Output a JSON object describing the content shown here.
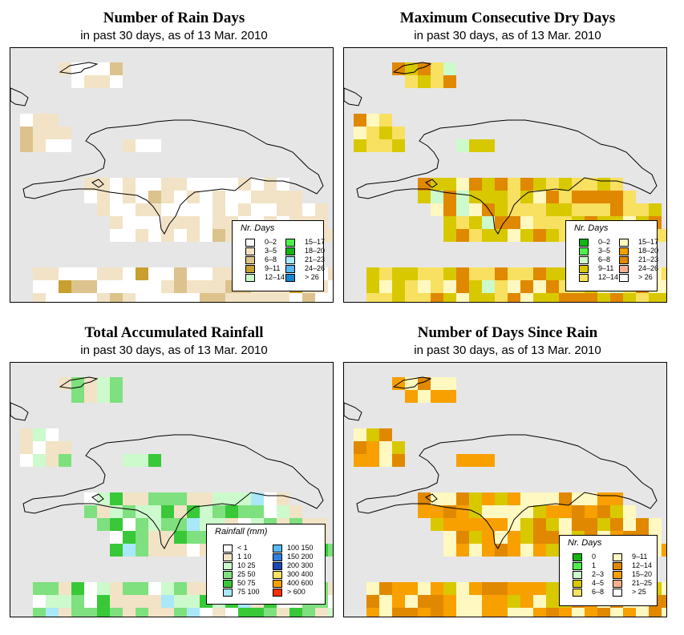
{
  "colors": {
    "ocean": "#e6e6e6",
    "coast": "#000000"
  },
  "panels": [
    {
      "id": "rain-days",
      "title": "Number of Rain Days",
      "subtitle": "in past 30 days, as of  13 Mar. 2010",
      "legend": {
        "title": "Nr. Days",
        "items": [
          {
            "label": "0–2",
            "color": "#ffffff"
          },
          {
            "label": "3–5",
            "color": "#f2e3c6"
          },
          {
            "label": "6–8",
            "color": "#dcc28c"
          },
          {
            "label": "9–11",
            "color": "#c8a030"
          },
          {
            "label": "12–14",
            "color": "#ccfacc"
          },
          {
            "label": "15–17",
            "color": "#4ef04e"
          },
          {
            "label": "18–20",
            "color": "#14b414"
          },
          {
            "label": "21–23",
            "color": "#a8e8f8"
          },
          {
            "label": "24–26",
            "color": "#58b8f0"
          },
          {
            "label": "> 26",
            "color": "#1088d0"
          }
        ]
      },
      "palette": [
        "#ffffff",
        "#f2e3c6",
        "#dcc28c",
        "#c8a030",
        "#ccfacc"
      ]
    },
    {
      "id": "dry-days",
      "title": "Maximum Consecutive Dry Days",
      "subtitle": "in past 30 days, as of  13 Mar. 2010",
      "legend": {
        "title": "Nr. Days",
        "items": [
          {
            "label": "0–2",
            "color": "#14b414"
          },
          {
            "label": "3–5",
            "color": "#4ef04e"
          },
          {
            "label": "6–8",
            "color": "#ccfacc"
          },
          {
            "label": "9–11",
            "color": "#d8c800"
          },
          {
            "label": "12–14",
            "color": "#f8e060"
          },
          {
            "label": "15–17",
            "color": "#fff8c0"
          },
          {
            "label": "18–20",
            "color": "#f0a000"
          },
          {
            "label": "21–23",
            "color": "#e08800"
          },
          {
            "label": "24–26",
            "color": "#f8b090"
          },
          {
            "label": "> 26",
            "color": "#ffffff"
          }
        ]
      },
      "palette": [
        "#d8c800",
        "#f8e060",
        "#fff8c0",
        "#e08800",
        "#ccfacc",
        "#4ef04e",
        "#f8b090"
      ]
    },
    {
      "id": "total-rainfall",
      "title": "Total Accumulated Rainfall",
      "subtitle": "in past 30 days, as of  13 Mar. 2010",
      "legend": {
        "title": "Rainfall (mm)",
        "items": [
          {
            "label": "< 1",
            "color": "#ffffff"
          },
          {
            "label": "1    10",
            "color": "#f2e3c6"
          },
          {
            "label": "10    25",
            "color": "#ccfacc"
          },
          {
            "label": "25    50",
            "color": "#7ee07e"
          },
          {
            "label": "50    75",
            "color": "#38c838"
          },
          {
            "label": "75   100",
            "color": "#a8e8f8"
          },
          {
            "label": "100   150",
            "color": "#58b8f0"
          },
          {
            "label": "150   200",
            "color": "#2f80e0"
          },
          {
            "label": "200   300",
            "color": "#1848b8"
          },
          {
            "label": "300   400",
            "color": "#f8e060"
          },
          {
            "label": "400   600",
            "color": "#f8a000"
          },
          {
            "label": "> 600",
            "color": "#f83000"
          }
        ]
      },
      "palette": [
        "#f2e3c6",
        "#ffffff",
        "#ccfacc",
        "#7ee07e",
        "#38c838",
        "#a8e8f8"
      ]
    },
    {
      "id": "days-since-rain",
      "title": "Number of Days Since Rain",
      "subtitle": "in past 30 days, as of  13 Mar. 2010",
      "legend": {
        "title": "Nr. Days",
        "items": [
          {
            "label": "0",
            "color": "#14b414"
          },
          {
            "label": "1",
            "color": "#4ef04e"
          },
          {
            "label": "2–3",
            "color": "#ccfacc"
          },
          {
            "label": "4–5",
            "color": "#d8c800"
          },
          {
            "label": "6–8",
            "color": "#f8e060"
          },
          {
            "label": "9–11",
            "color": "#fff8c0"
          },
          {
            "label": "12–14",
            "color": "#e08800"
          },
          {
            "label": "15–20",
            "color": "#f8a000"
          },
          {
            "label": "21–25",
            "color": "#f8b090"
          },
          {
            "label": "> 25",
            "color": "#ffffff"
          }
        ]
      },
      "palette": [
        "#fff8c0",
        "#f8a000",
        "#e08800",
        "#d8c800",
        "#14b414",
        "#4ef04e",
        "#f8b090",
        "#ffffff"
      ]
    }
  ]
}
